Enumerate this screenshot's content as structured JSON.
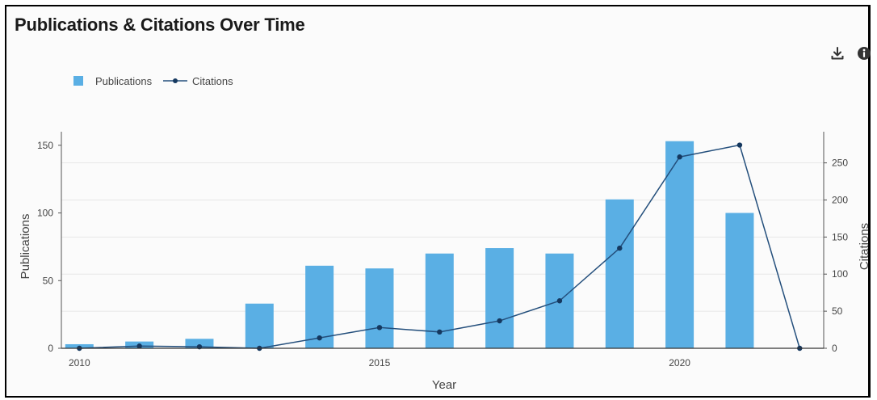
{
  "header": {
    "title": "Publications & Citations Over Time"
  },
  "toolbar": {
    "download_icon": "download-icon",
    "info_icon": "info-icon"
  },
  "colors": {
    "bar": "#5aafe4",
    "line": "#244f7c",
    "point": "#15385f",
    "axis": "#555555",
    "grid": "#e7e7e7",
    "text": "#444444"
  },
  "chart_data": {
    "type": "bar",
    "xlabel": "Year",
    "ylabel": "Publications",
    "y2label": "Citations",
    "legend_position": "top-left",
    "grid": true,
    "xlim": [
      2009.7,
      2022.4
    ],
    "ylim": [
      0,
      160
    ],
    "y2lim": [
      0,
      292
    ],
    "xticks": [
      2010,
      2015,
      2020
    ],
    "yticks": [
      0,
      50,
      100,
      150
    ],
    "y2ticks": [
      0,
      50,
      100,
      150,
      200,
      250
    ],
    "series": [
      {
        "name": "Publications",
        "type": "bar",
        "axis": "left",
        "x": [
          2010,
          2011,
          2012,
          2013,
          2014,
          2015,
          2016,
          2017,
          2018,
          2019,
          2020,
          2021
        ],
        "values": [
          3,
          5,
          7,
          33,
          61,
          59,
          70,
          74,
          70,
          110,
          153,
          100
        ]
      },
      {
        "name": "Citations",
        "type": "line",
        "axis": "right",
        "x": [
          2010,
          2011,
          2012,
          2013,
          2014,
          2015,
          2016,
          2017,
          2018,
          2019,
          2020,
          2021,
          2022
        ],
        "values": [
          0,
          3,
          2,
          0,
          14,
          28,
          22,
          37,
          64,
          135,
          258,
          274,
          0
        ]
      }
    ]
  }
}
